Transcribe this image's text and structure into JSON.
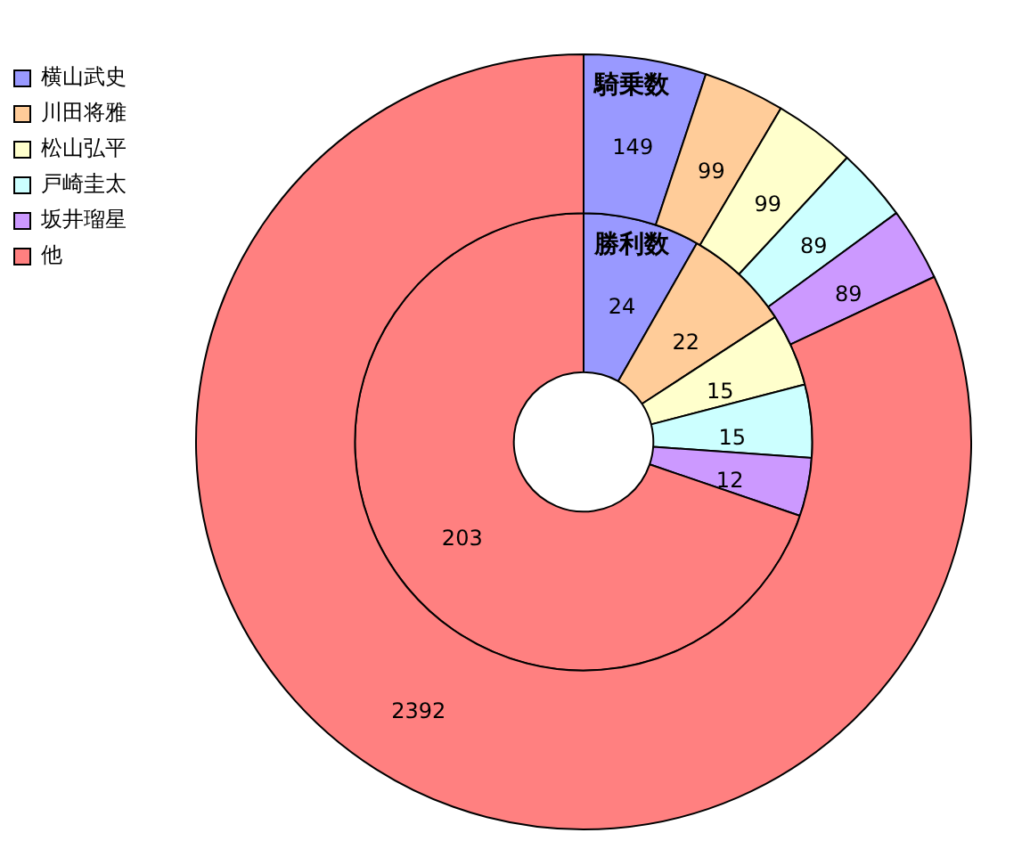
{
  "chart_data": {
    "type": "donut",
    "categories": [
      "横山武史",
      "川田将雅",
      "松山弘平",
      "戸崎圭太",
      "坂井瑠星",
      "他"
    ],
    "colors": [
      "#9999ff",
      "#ffcc99",
      "#ffffcc",
      "#ccffff",
      "#cc99ff",
      "#ff8080"
    ],
    "series": [
      {
        "name": "騎乗数",
        "values": [
          149,
          99,
          99,
          89,
          89,
          2392
        ]
      },
      {
        "name": "勝利数",
        "values": [
          24,
          22,
          15,
          15,
          12,
          203
        ]
      }
    ],
    "data_labels": true,
    "legend": "top left"
  }
}
